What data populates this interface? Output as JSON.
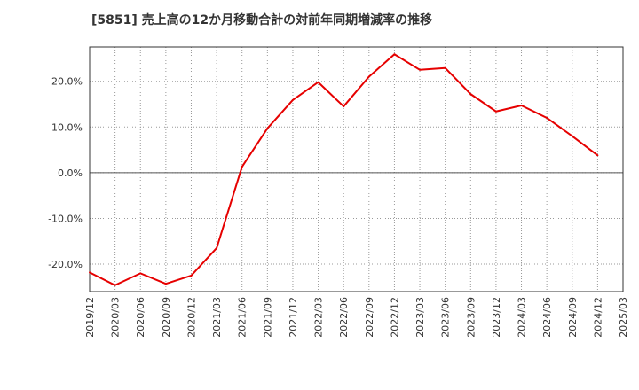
{
  "chart_data": {
    "type": "line",
    "title": "[5851]  売上高の12か月移動合計の対前年同期増減率の推移",
    "xlabel": "",
    "ylabel": "",
    "ylim": [
      -26,
      27.5
    ],
    "y_ticks": [
      -20,
      -10,
      0,
      10,
      20
    ],
    "y_tick_labels": [
      "-20.0%",
      "-10.0%",
      "0.0%",
      "10.0%",
      "20.0%"
    ],
    "categories": [
      "2019/12",
      "2020/03",
      "2020/06",
      "2020/09",
      "2020/12",
      "2021/03",
      "2021/06",
      "2021/09",
      "2021/12",
      "2022/03",
      "2022/06",
      "2022/09",
      "2022/12",
      "2023/03",
      "2023/06",
      "2023/09",
      "2023/12",
      "2024/03",
      "2024/06",
      "2024/09",
      "2024/12",
      "2025/03"
    ],
    "grid": true,
    "series": [
      {
        "name": "増減率",
        "color": "#e60000",
        "values": [
          -21.8,
          -24.6,
          -22.0,
          -24.3,
          -22.5,
          -16.5,
          1.3,
          9.7,
          15.9,
          19.8,
          14.5,
          21.0,
          25.9,
          22.5,
          22.9,
          17.2,
          13.4,
          14.7,
          12.0,
          8.0,
          3.8,
          null
        ]
      }
    ]
  }
}
